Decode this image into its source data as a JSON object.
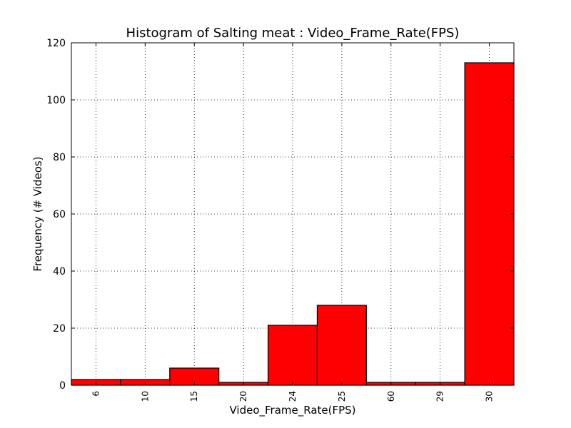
{
  "chart_data": {
    "type": "bar",
    "title": "Histogram of Salting meat : Video_Frame_Rate(FPS)",
    "xlabel": "Video_Frame_Rate(FPS)",
    "ylabel": "Frequency (# Videos)",
    "categories": [
      "6",
      "10",
      "15",
      "20",
      "24",
      "25",
      "60",
      "29",
      "30"
    ],
    "values": [
      2,
      2,
      6,
      1,
      21,
      28,
      1,
      1,
      113
    ],
    "ylim": [
      0,
      120
    ],
    "yticks": [
      0,
      20,
      40,
      60,
      80,
      100,
      120
    ],
    "grid": true,
    "bar_color": "#ff0000",
    "edge_color": "#000000"
  }
}
